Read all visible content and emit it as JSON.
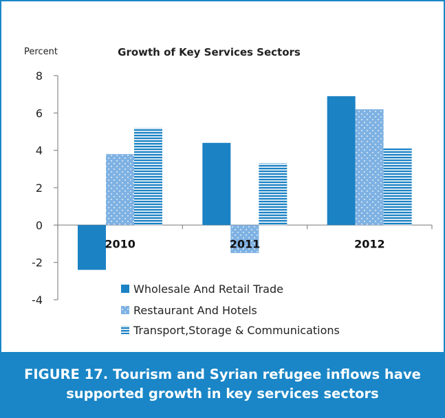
{
  "caption": {
    "label": "FIGURE 17.",
    "text": "Tourism and Syrian refugee inflows have supported growth in key services sectors"
  },
  "colors": {
    "accent": "#1a86c7",
    "series": [
      "#1b82c4",
      "#7fb2e3",
      "#1b82c4"
    ]
  },
  "chart_data": {
    "type": "bar",
    "title": "Growth of Key Services Sectors",
    "ylabel": "Percent",
    "xlabel": "",
    "categories": [
      "2010",
      "2011",
      "2012"
    ],
    "series": [
      {
        "name": "Wholesale And Retail Trade",
        "values": [
          -2.4,
          4.4,
          6.9
        ],
        "pattern": "solid"
      },
      {
        "name": "Restaurant And Hotels",
        "values": [
          3.8,
          -1.5,
          6.2
        ],
        "pattern": "dots"
      },
      {
        "name": "Transport,Storage & Communications",
        "values": [
          5.2,
          3.3,
          4.1
        ],
        "pattern": "hstripes"
      }
    ],
    "yticks": [
      -4,
      -2,
      0,
      2,
      4,
      6,
      8
    ],
    "ylim": [
      -4,
      8
    ],
    "grid": false,
    "legend": "bottom-center"
  }
}
